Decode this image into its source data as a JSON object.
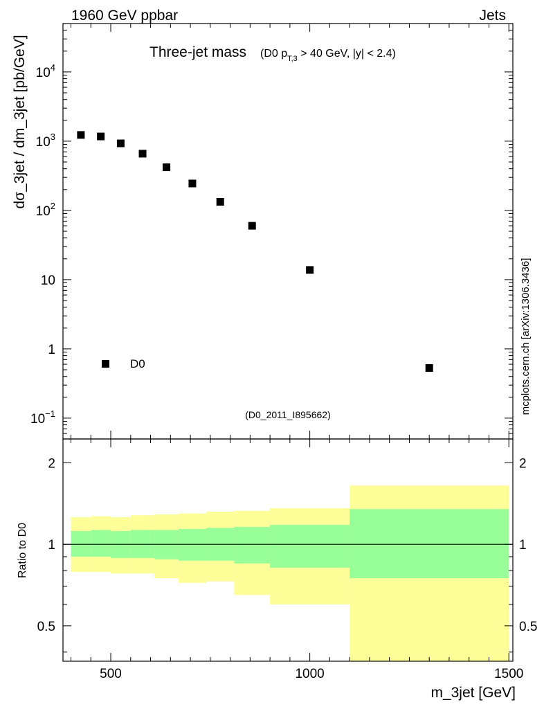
{
  "header": {
    "left_label": "1960 GeV ppbar",
    "right_label": "Jets"
  },
  "chart_data": {
    "type": "scatter",
    "title": "Three-jet mass",
    "subtitle_parts": {
      "prefix": "(D0 p",
      "subscript": "T,3",
      "suffix": " > 40 GeV, |y| < 2.4)"
    },
    "analysis_tag": "(D0_2011_I895662)",
    "side_label": "mcplots.cern.ch [arXiv:1306.3436]",
    "xlabel": "m_3jet [GeV]",
    "ylabel": "dσ_3jet / dm_3jet [pb/GeV]",
    "ratio_ylabel": "Ratio to D0",
    "xlim": [
      380,
      1510
    ],
    "ylim": [
      0.05,
      50000
    ],
    "ratio_ylim": [
      0.37,
      2.45
    ],
    "x_ticks": [
      {
        "value": 500,
        "label": "500"
      },
      {
        "value": 1000,
        "label": "1000"
      },
      {
        "value": 1500,
        "label": "1500"
      }
    ],
    "y_ticks": [
      {
        "value": 0.1,
        "base": "10",
        "exp": "−1"
      },
      {
        "value": 1,
        "base": "1",
        "exp": ""
      },
      {
        "value": 10,
        "base": "10",
        "exp": ""
      },
      {
        "value": 100,
        "base": "10",
        "exp": "2"
      },
      {
        "value": 1000,
        "base": "10",
        "exp": "3"
      },
      {
        "value": 10000,
        "base": "10",
        "exp": "4"
      }
    ],
    "ratio_y_ticks": [
      {
        "value": 0.5,
        "label": "0.5"
      },
      {
        "value": 1,
        "label": "1"
      },
      {
        "value": 2,
        "label": "2"
      }
    ],
    "legend": [
      {
        "name": "D0",
        "marker": "square",
        "position": "bottom-left"
      }
    ],
    "series": [
      {
        "name": "D0",
        "bins": [
          {
            "xlo": 400,
            "xhi": 450,
            "x": 425,
            "y": 1230,
            "band_inner": [
              0.9,
              1.12
            ],
            "band_outer": [
              0.79,
              1.26
            ]
          },
          {
            "xlo": 450,
            "xhi": 500,
            "x": 475,
            "y": 1170,
            "band_inner": [
              0.9,
              1.13
            ],
            "band_outer": [
              0.79,
              1.27
            ]
          },
          {
            "xlo": 500,
            "xhi": 550,
            "x": 525,
            "y": 930,
            "band_inner": [
              0.89,
              1.12
            ],
            "band_outer": [
              0.78,
              1.26
            ]
          },
          {
            "xlo": 550,
            "xhi": 610,
            "x": 580,
            "y": 660,
            "band_inner": [
              0.89,
              1.13
            ],
            "band_outer": [
              0.78,
              1.28
            ]
          },
          {
            "xlo": 610,
            "xhi": 670,
            "x": 640,
            "y": 420,
            "band_inner": [
              0.88,
              1.13
            ],
            "band_outer": [
              0.75,
              1.29
            ]
          },
          {
            "xlo": 670,
            "xhi": 740,
            "x": 705,
            "y": 245,
            "band_inner": [
              0.87,
              1.14
            ],
            "band_outer": [
              0.72,
              1.3
            ]
          },
          {
            "xlo": 740,
            "xhi": 810,
            "x": 775,
            "y": 133,
            "band_inner": [
              0.87,
              1.15
            ],
            "band_outer": [
              0.73,
              1.32
            ]
          },
          {
            "xlo": 810,
            "xhi": 900,
            "x": 855,
            "y": 60,
            "band_inner": [
              0.85,
              1.16
            ],
            "band_outer": [
              0.65,
              1.33
            ]
          },
          {
            "xlo": 900,
            "xhi": 1100,
            "x": 1000,
            "y": 13.8,
            "band_inner": [
              0.82,
              1.18
            ],
            "band_outer": [
              0.6,
              1.36
            ]
          },
          {
            "xlo": 1100,
            "xhi": 1500,
            "x": 1300,
            "y": 0.53,
            "band_inner": [
              0.75,
              1.35
            ],
            "band_outer": [
              0.37,
              1.65
            ]
          }
        ]
      }
    ],
    "colors": {
      "band_inner": "#99ff99",
      "band_outer": "#ffff99",
      "marker": "#000000",
      "axis": "#000000",
      "muted_text": "#888888",
      "side_text": "#666666"
    }
  }
}
